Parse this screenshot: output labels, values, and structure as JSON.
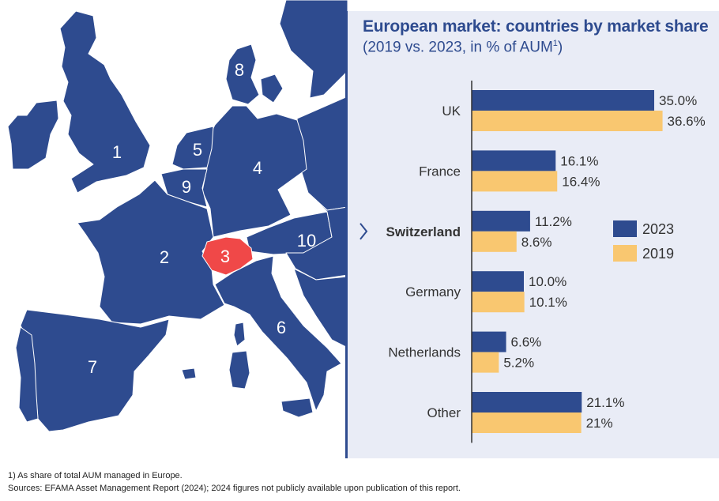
{
  "header": {
    "title": "European market: countries by market share",
    "subtitle": "(2019 vs. 2023, in % of AUM",
    "subtitle_sup": "1",
    "subtitle_end": ")"
  },
  "map": {
    "numbers": [
      "1",
      "2",
      "3",
      "4",
      "5",
      "6",
      "7",
      "8",
      "9",
      "10"
    ],
    "colors": {
      "country": "#2e4b8f",
      "highlight": "#f04848",
      "border": "#ffffff"
    }
  },
  "chart_data": {
    "type": "bar",
    "orientation": "horizontal",
    "categories": [
      "UK",
      "France",
      "Switzerland",
      "Germany",
      "Netherlands",
      "Other"
    ],
    "highlighted_category": "Switzerland",
    "series": [
      {
        "name": "2023",
        "values": [
          35.0,
          16.1,
          11.2,
          10.0,
          6.6,
          21.1
        ],
        "labels": [
          "35.0%",
          "16.1%",
          "11.2%",
          "10.0%",
          "6.6%",
          "21.1%"
        ],
        "color": "#2e4b8f"
      },
      {
        "name": "2019",
        "values": [
          36.6,
          16.4,
          8.6,
          10.1,
          5.2,
          21.0
        ],
        "labels": [
          "36.6%",
          "16.4%",
          "8.6%",
          "10.1%",
          "5.2%",
          "21%"
        ],
        "color": "#f9c770"
      }
    ],
    "legend_position": "right",
    "grid": false,
    "xlim": [
      0,
      40
    ]
  },
  "footnotes": {
    "note1": "1) As share of total AUM managed in Europe.",
    "source": "Sources: EFAMA Asset Management Report (2024); 2024 figures not publicly available upon publication of this report."
  }
}
